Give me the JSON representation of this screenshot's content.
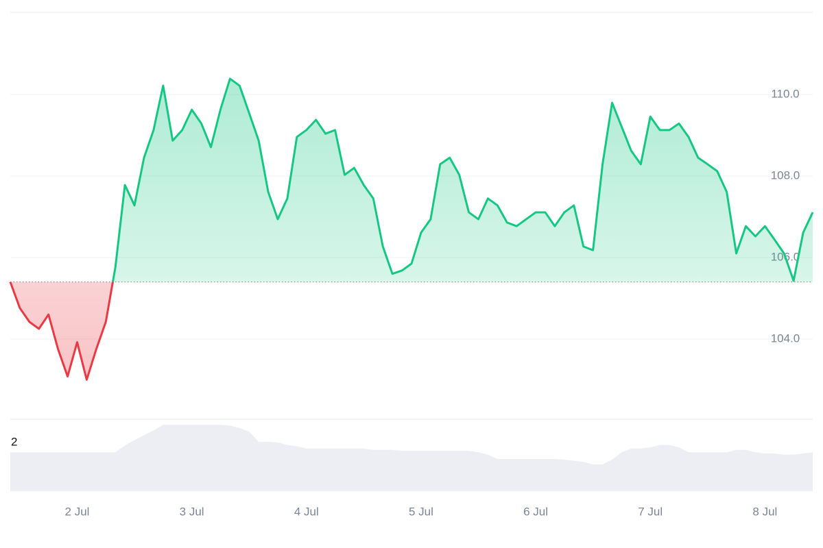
{
  "chart_data": {
    "type": "line",
    "categories": [
      null,
      null,
      null,
      null,
      null,
      null,
      null,
      "2 Jul",
      null,
      null,
      null,
      null,
      null,
      null,
      null,
      null,
      null,
      null,
      null,
      "3 Jul",
      null,
      null,
      null,
      null,
      null,
      null,
      null,
      null,
      null,
      null,
      null,
      "4 Jul",
      null,
      null,
      null,
      null,
      null,
      null,
      null,
      null,
      null,
      null,
      null,
      "5 Jul",
      null,
      null,
      null,
      null,
      null,
      null,
      null,
      null,
      null,
      null,
      null,
      "6 Jul",
      null,
      null,
      null,
      null,
      null,
      null,
      null,
      null,
      null,
      null,
      null,
      "7 Jul",
      null,
      null,
      null,
      null,
      null,
      null,
      null,
      null,
      null,
      null,
      null,
      "8 Jul",
      null,
      null,
      null,
      null,
      null
    ],
    "values": [
      105.4,
      104.76,
      104.42,
      104.25,
      104.6,
      103.75,
      103.08,
      103.92,
      103.0,
      103.75,
      104.42,
      105.76,
      107.78,
      107.28,
      108.45,
      109.13,
      110.22,
      108.87,
      109.13,
      109.63,
      109.29,
      108.71,
      109.63,
      110.39,
      110.22,
      109.55,
      108.87,
      107.61,
      106.94,
      107.45,
      108.96,
      109.13,
      109.38,
      109.04,
      109.13,
      108.03,
      108.2,
      107.78,
      107.45,
      106.27,
      105.6,
      105.68,
      105.85,
      106.61,
      106.94,
      108.29,
      108.45,
      108.03,
      107.11,
      106.94,
      107.45,
      107.28,
      106.86,
      106.77,
      106.94,
      107.11,
      107.11,
      106.77,
      107.11,
      107.28,
      106.27,
      106.18,
      108.29,
      109.8,
      109.21,
      108.62,
      108.29,
      109.46,
      109.13,
      109.13,
      109.29,
      108.96,
      108.45,
      108.29,
      108.12,
      107.61,
      106.1,
      106.77,
      106.52,
      106.77,
      106.44,
      106.1,
      105.43,
      106.61,
      107.11
    ],
    "baseline": 105.4,
    "up_color": "#16c784",
    "down_color": "#ea3943",
    "ylim": [
      102.03,
      112.02
    ],
    "yticks": [
      {
        "value": 104,
        "label": "104.0"
      },
      {
        "value": 106,
        "label": "106.0"
      },
      {
        "value": 108,
        "label": "108.0"
      },
      {
        "value": 110,
        "label": "110.0"
      }
    ],
    "grid": true,
    "volume": {
      "color": "#eceef3",
      "values": [
        1.6,
        1.6,
        1.6,
        1.6,
        1.6,
        1.6,
        1.6,
        1.6,
        1.6,
        1.6,
        1.6,
        1.6,
        1.88,
        2.1,
        2.3,
        2.5,
        2.73,
        2.73,
        2.73,
        2.73,
        2.73,
        2.73,
        2.73,
        2.7,
        2.6,
        2.45,
        2.03,
        2.03,
        2.0,
        1.9,
        1.85,
        1.75,
        1.75,
        1.75,
        1.75,
        1.75,
        1.75,
        1.75,
        1.7,
        1.7,
        1.7,
        1.66,
        1.66,
        1.66,
        1.66,
        1.66,
        1.66,
        1.66,
        1.66,
        1.6,
        1.5,
        1.32,
        1.32,
        1.32,
        1.32,
        1.32,
        1.32,
        1.32,
        1.3,
        1.25,
        1.2,
        1.1,
        1.1,
        1.3,
        1.6,
        1.75,
        1.75,
        1.8,
        1.9,
        1.9,
        1.8,
        1.6,
        1.6,
        1.6,
        1.6,
        1.6,
        1.7,
        1.7,
        1.6,
        1.55,
        1.55,
        1.5,
        1.5,
        1.55,
        1.6
      ],
      "ylim": [
        0,
        2.96
      ],
      "yticks": [
        2
      ]
    }
  }
}
